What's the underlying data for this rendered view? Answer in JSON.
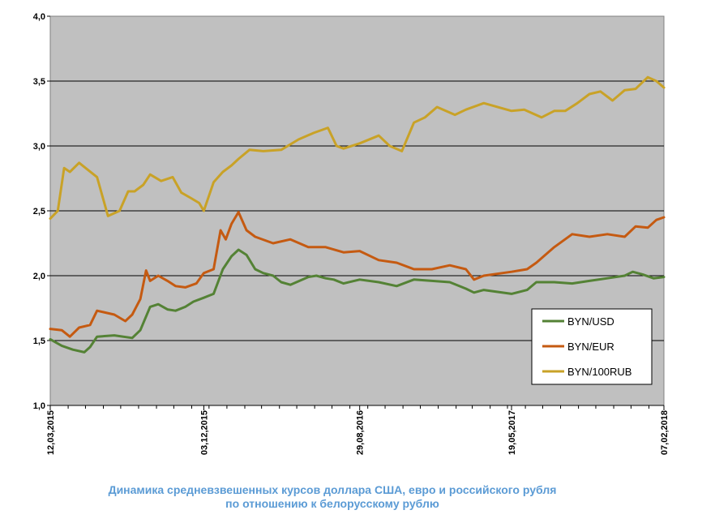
{
  "chart_data": {
    "type": "line",
    "title": "",
    "xlabel": "",
    "ylabel": "",
    "ylim": [
      1.0,
      4.0
    ],
    "y_ticks": [
      "1,0",
      "1,5",
      "2,0",
      "2,5",
      "3,0",
      "3,5",
      "4,0"
    ],
    "y_tick_values": [
      1.0,
      1.5,
      2.0,
      2.5,
      3.0,
      3.5,
      4.0
    ],
    "x_range": [
      "2015-03-12",
      "2018-02-07"
    ],
    "x_ticks": [
      "12,03,2015",
      "03,12,2015",
      "29,08,2016",
      "19,05,2017",
      "07,02,2018"
    ],
    "x_tick_dates": [
      "2015-03-12",
      "2015-12-03",
      "2016-08-29",
      "2017-05-19",
      "2018-02-07"
    ],
    "grid": "horizontal",
    "plot_background": "#c0c0c0",
    "legend_position": "bottom-right, inside plot",
    "series": [
      {
        "name": "BYN/USD",
        "color": "#548235",
        "x": [
          "2015-03-12",
          "2015-04-01",
          "2015-04-20",
          "2015-05-10",
          "2015-05-20",
          "2015-06-01",
          "2015-07-01",
          "2015-08-01",
          "2015-08-15",
          "2015-09-01",
          "2015-09-15",
          "2015-10-01",
          "2015-10-15",
          "2015-11-01",
          "2015-11-15",
          "2015-12-03",
          "2015-12-20",
          "2016-01-05",
          "2016-01-20",
          "2016-02-01",
          "2016-02-15",
          "2016-03-01",
          "2016-03-15",
          "2016-04-01",
          "2016-04-15",
          "2016-05-01",
          "2016-06-01",
          "2016-06-15",
          "2016-07-01",
          "2016-07-15",
          "2016-08-01",
          "2016-08-29",
          "2016-10-01",
          "2016-11-01",
          "2016-12-01",
          "2017-01-01",
          "2017-02-01",
          "2017-03-01",
          "2017-03-15",
          "2017-04-01",
          "2017-05-19",
          "2017-06-15",
          "2017-07-01",
          "2017-08-01",
          "2017-09-01",
          "2017-10-01",
          "2017-11-01",
          "2017-12-01",
          "2017-12-15",
          "2018-01-01",
          "2018-01-20",
          "2018-02-07"
        ],
        "values": [
          1.51,
          1.46,
          1.43,
          1.41,
          1.45,
          1.53,
          1.54,
          1.52,
          1.58,
          1.76,
          1.78,
          1.74,
          1.73,
          1.76,
          1.8,
          1.83,
          1.86,
          2.05,
          2.15,
          2.2,
          2.16,
          2.05,
          2.02,
          2.0,
          1.95,
          1.93,
          1.99,
          2.0,
          1.98,
          1.97,
          1.94,
          1.97,
          1.95,
          1.92,
          1.97,
          1.96,
          1.95,
          1.9,
          1.87,
          1.89,
          1.86,
          1.89,
          1.95,
          1.95,
          1.94,
          1.96,
          1.98,
          2.0,
          2.03,
          2.01,
          1.98,
          1.99
        ]
      },
      {
        "name": "BYN/EUR",
        "color": "#c55a11",
        "x": [
          "2015-03-12",
          "2015-04-01",
          "2015-04-15",
          "2015-05-01",
          "2015-05-20",
          "2015-06-01",
          "2015-07-01",
          "2015-07-20",
          "2015-08-01",
          "2015-08-15",
          "2015-08-25",
          "2015-09-01",
          "2015-09-15",
          "2015-10-01",
          "2015-10-15",
          "2015-11-01",
          "2015-11-20",
          "2015-12-03",
          "2015-12-20",
          "2016-01-01",
          "2016-01-10",
          "2016-01-20",
          "2016-02-01",
          "2016-02-15",
          "2016-03-01",
          "2016-04-01",
          "2016-05-01",
          "2016-06-01",
          "2016-07-01",
          "2016-08-01",
          "2016-08-29",
          "2016-10-01",
          "2016-11-01",
          "2016-12-01",
          "2017-01-01",
          "2017-02-01",
          "2017-03-01",
          "2017-03-15",
          "2017-04-01",
          "2017-05-19",
          "2017-06-15",
          "2017-07-01",
          "2017-08-01",
          "2017-09-01",
          "2017-10-01",
          "2017-11-01",
          "2017-12-01",
          "2017-12-20",
          "2018-01-10",
          "2018-01-25",
          "2018-02-07"
        ],
        "values": [
          1.59,
          1.58,
          1.53,
          1.6,
          1.62,
          1.73,
          1.7,
          1.65,
          1.7,
          1.82,
          2.04,
          1.96,
          2.0,
          1.96,
          1.92,
          1.91,
          1.94,
          2.02,
          2.05,
          2.35,
          2.28,
          2.4,
          2.49,
          2.35,
          2.3,
          2.25,
          2.28,
          2.22,
          2.22,
          2.18,
          2.19,
          2.12,
          2.1,
          2.05,
          2.05,
          2.08,
          2.05,
          1.97,
          2.0,
          2.03,
          2.05,
          2.1,
          2.22,
          2.32,
          2.3,
          2.32,
          2.3,
          2.38,
          2.37,
          2.43,
          2.45
        ]
      },
      {
        "name": "BYN/100RUB",
        "color": "#c9a227",
        "x": [
          "2015-03-12",
          "2015-03-25",
          "2015-04-05",
          "2015-04-15",
          "2015-05-01",
          "2015-05-15",
          "2015-06-01",
          "2015-06-20",
          "2015-07-10",
          "2015-07-25",
          "2015-08-05",
          "2015-08-20",
          "2015-09-01",
          "2015-09-20",
          "2015-10-10",
          "2015-10-25",
          "2015-11-10",
          "2015-11-25",
          "2015-12-03",
          "2015-12-20",
          "2016-01-05",
          "2016-01-20",
          "2016-02-01",
          "2016-02-20",
          "2016-03-15",
          "2016-04-15",
          "2016-05-15",
          "2016-06-10",
          "2016-07-05",
          "2016-07-20",
          "2016-08-01",
          "2016-08-29",
          "2016-10-01",
          "2016-10-20",
          "2016-11-10",
          "2016-12-01",
          "2016-12-20",
          "2017-01-10",
          "2017-02-10",
          "2017-03-01",
          "2017-04-01",
          "2017-05-19",
          "2017-06-10",
          "2017-07-10",
          "2017-08-01",
          "2017-08-20",
          "2017-09-10",
          "2017-10-01",
          "2017-10-20",
          "2017-11-10",
          "2017-12-01",
          "2017-12-20",
          "2018-01-10",
          "2018-01-25",
          "2018-02-07"
        ],
        "values": [
          2.44,
          2.5,
          2.83,
          2.8,
          2.87,
          2.82,
          2.76,
          2.46,
          2.5,
          2.65,
          2.65,
          2.7,
          2.78,
          2.73,
          2.76,
          2.64,
          2.6,
          2.56,
          2.5,
          2.72,
          2.8,
          2.85,
          2.9,
          2.97,
          2.96,
          2.97,
          3.05,
          3.1,
          3.14,
          3.0,
          2.98,
          3.02,
          3.08,
          3.0,
          2.96,
          3.18,
          3.22,
          3.3,
          3.24,
          3.28,
          3.33,
          3.27,
          3.28,
          3.22,
          3.27,
          3.27,
          3.33,
          3.4,
          3.42,
          3.35,
          3.43,
          3.44,
          3.53,
          3.5,
          3.45
        ]
      }
    ]
  },
  "caption": {
    "line1": "Динамика  средневзвешенных курсов доллара США, евро и российского рубля",
    "line2": "по отношению к белорусскому рублю"
  }
}
